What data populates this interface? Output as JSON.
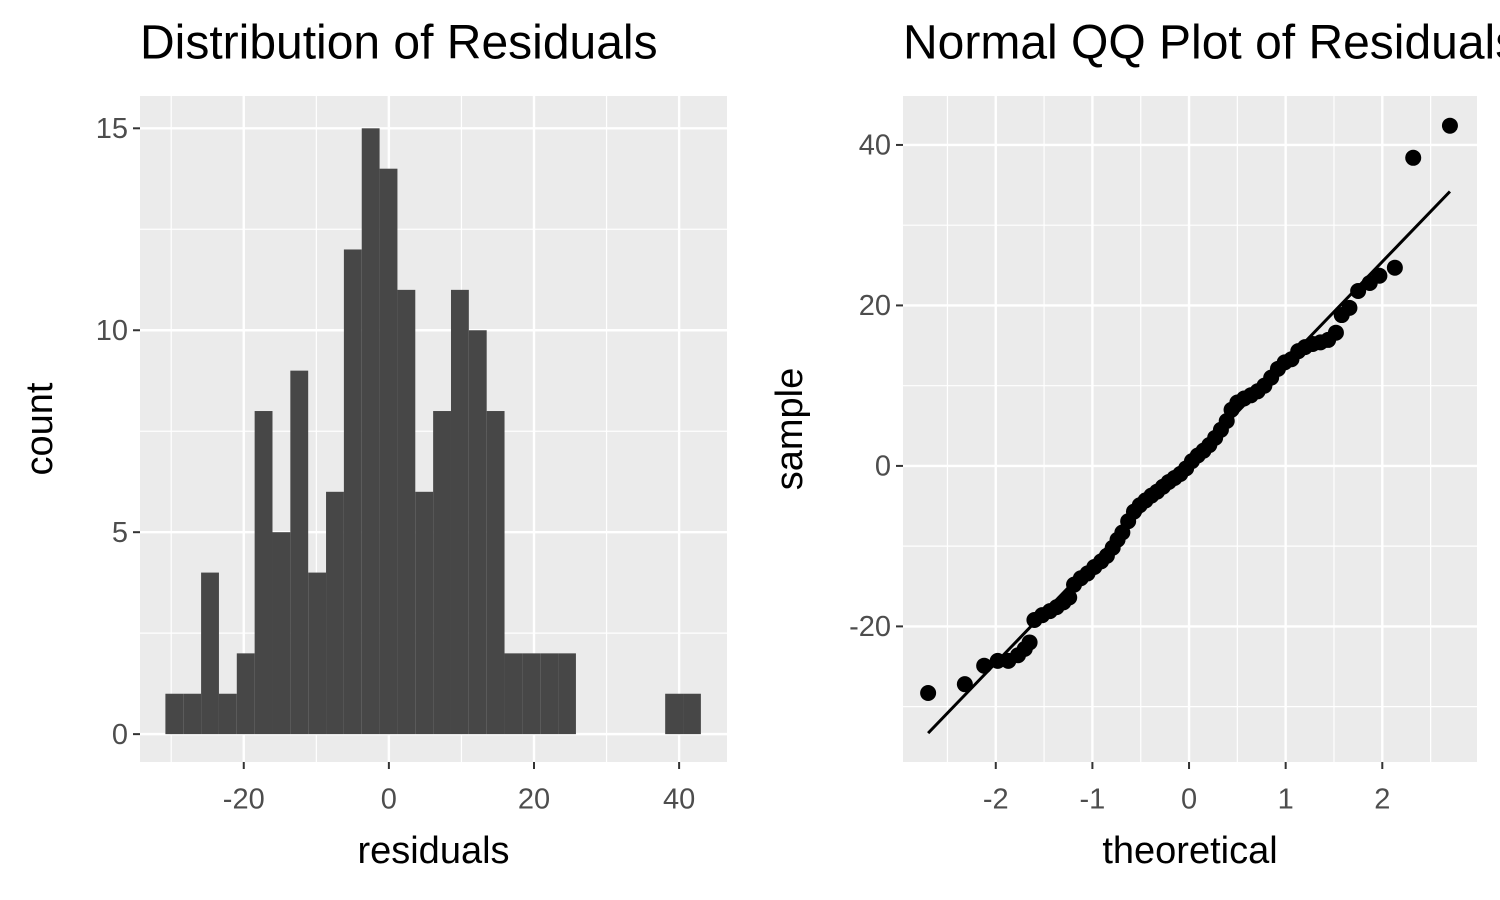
{
  "chart_data": [
    {
      "type": "histogram",
      "title": "Distribution of Residuals",
      "x_label": "residuals",
      "y_label": "count",
      "bins": [
        -30.8,
        -28.34,
        -25.88,
        -23.42,
        -20.96,
        -18.5,
        -16.04,
        -13.58,
        -11.12,
        -8.66,
        -6.2,
        -3.74,
        -1.28,
        1.18,
        3.64,
        6.1,
        8.56,
        11.02,
        13.48,
        15.94,
        18.4,
        20.86,
        23.32,
        25.78,
        28.24,
        30.7,
        33.16,
        35.62,
        38.08,
        40.54,
        43.0
      ],
      "counts": [
        1,
        1,
        4,
        1,
        2,
        8,
        5,
        9,
        4,
        6,
        12,
        15,
        14,
        11,
        6,
        8,
        11,
        10,
        8,
        2,
        2,
        2,
        2,
        0,
        0,
        0,
        0,
        0,
        1,
        1
      ],
      "color": "#474747",
      "xlim": [
        -34.3,
        46.6
      ],
      "ylim": [
        -0.69,
        15.8
      ],
      "xticks": [
        -20,
        0,
        20,
        40
      ],
      "yticks": [
        0,
        5,
        10,
        15
      ],
      "grid": true
    },
    {
      "type": "scatter",
      "title": "Normal QQ Plot of Residuals",
      "x_label": "theoretical",
      "y_label": "sample",
      "x": [
        -2.7,
        -2.32,
        -2.12,
        -1.98,
        -1.87,
        -1.77,
        -1.7,
        -1.65,
        -1.6,
        -1.52,
        -1.44,
        -1.37,
        -1.3,
        -1.24,
        -1.19,
        -1.12,
        -1.05,
        -0.98,
        -0.91,
        -0.85,
        -0.79,
        -0.74,
        -0.69,
        -0.63,
        -0.57,
        -0.51,
        -0.45,
        -0.39,
        -0.33,
        -0.27,
        -0.21,
        -0.15,
        -0.09,
        -0.03,
        0.03,
        0.09,
        0.15,
        0.21,
        0.27,
        0.33,
        0.39,
        0.44,
        0.5,
        0.57,
        0.64,
        0.71,
        0.78,
        0.85,
        0.92,
        0.99,
        1.06,
        1.13,
        1.2,
        1.28,
        1.36,
        1.44,
        1.52,
        1.58,
        1.66,
        1.75,
        1.87,
        1.97,
        2.13,
        2.32,
        2.7
      ],
      "y": [
        -28.3,
        -27.2,
        -24.9,
        -24.3,
        -24.3,
        -23.6,
        -22.8,
        -22.0,
        -19.2,
        -18.6,
        -18.1,
        -17.6,
        -17.0,
        -16.4,
        -14.8,
        -14.0,
        -13.4,
        -12.6,
        -11.9,
        -11.2,
        -10.2,
        -9.2,
        -8.3,
        -6.9,
        -5.7,
        -4.9,
        -4.3,
        -3.7,
        -3.2,
        -2.6,
        -2.0,
        -1.5,
        -1.0,
        -0.3,
        0.6,
        1.3,
        1.9,
        2.6,
        3.5,
        4.5,
        5.6,
        7.0,
        7.9,
        8.4,
        8.8,
        9.3,
        10.0,
        11.0,
        12.1,
        12.9,
        13.3,
        14.3,
        14.8,
        15.2,
        15.4,
        15.7,
        16.6,
        18.8,
        19.7,
        21.8,
        22.8,
        23.7,
        24.7,
        38.4,
        42.4
      ],
      "line_x": [
        -2.7,
        2.7
      ],
      "line_y": [
        -33.3,
        34.2
      ],
      "color": "#000000",
      "xlim": [
        -2.96,
        2.98
      ],
      "ylim": [
        -36.9,
        46.1
      ],
      "xticks": [
        -2,
        -1,
        0,
        1,
        2
      ],
      "yticks": [
        -20,
        0,
        20,
        40
      ],
      "grid": true
    }
  ]
}
